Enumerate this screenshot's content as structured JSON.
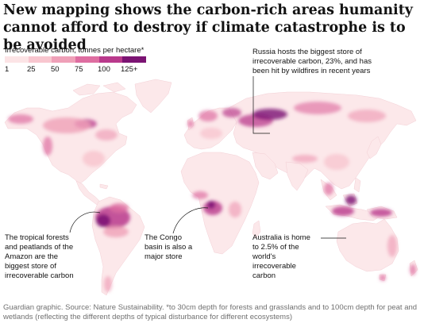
{
  "headline": "New mapping shows the carbon-rich areas humanity cannot afford to destroy if climate catastrophe is to be avoided",
  "legend": {
    "title": "Irrecoverable carbon, tonnes per hectare*",
    "ticks": [
      "1",
      "25",
      "50",
      "75",
      "100",
      "125+"
    ],
    "colors": [
      "#fce4e6",
      "#f8c6cf",
      "#efa0b8",
      "#de6ea1",
      "#b93a8c",
      "#7b1473"
    ]
  },
  "annotations": {
    "russia": "Russia hosts the biggest store of\nirrecoverable carbon, 23%, and has\nbeen hit by wildfires in recent years",
    "amazon": "The tropical forests\nand peatlands of the\nAmazon are the\nbiggest store of\nirrecoverable carbon",
    "congo": "The Congo\nbasin is also a\nmajor store",
    "australia": "Australia is home\nto 2.5% of the\nworld's\nirrecoverable\ncarbon"
  },
  "footer": "Guardian graphic. Source: Nature Sustainability. *to 30cm depth for forests and grasslands and to 100cm depth for peat and wetlands (reflecting the different depths of typical disturbance for different ecosystems)"
}
